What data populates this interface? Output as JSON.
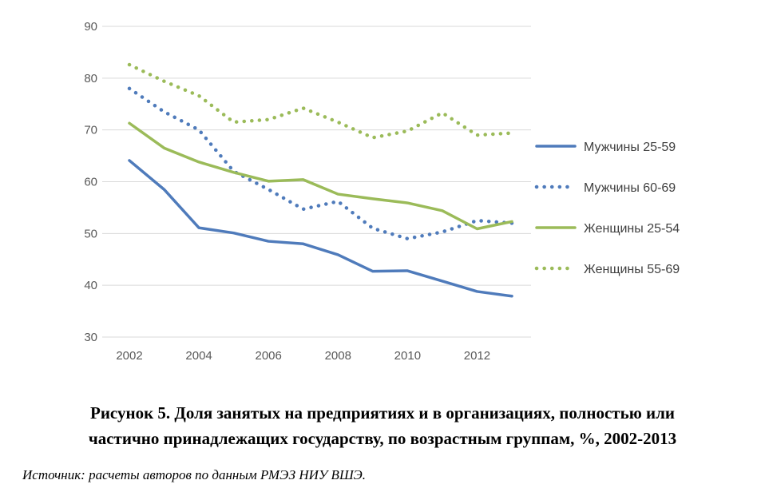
{
  "chart_data": {
    "type": "line",
    "title": "Рисунок 5. Доля занятых на предприятиях и в организациях, полностью или частично принадлежащих государству, по возрастным группам, %, 2002-2013",
    "title_lines": [
      "Рисунок 5. Доля занятых на предприятиях и в организациях, полностью или",
      "частично принадлежащих государству, по возрастным группам, %, 2002-2013"
    ],
    "source": "Источник: расчеты авторов по данным РМЭЗ НИУ ВШЭ.",
    "xlabel": "",
    "ylabel": "",
    "x": [
      2002,
      2003,
      2004,
      2005,
      2006,
      2007,
      2008,
      2009,
      2010,
      2011,
      2012,
      2013
    ],
    "xticks": [
      "2002",
      "2004",
      "2006",
      "2008",
      "2010",
      "2012"
    ],
    "yticks": [
      "30",
      "40",
      "50",
      "60",
      "70",
      "80",
      "90"
    ],
    "ylim": [
      30,
      90
    ],
    "grid": true,
    "legend": "right",
    "series": [
      {
        "name": "Мужчины 25-59",
        "color": "#4f7bbb",
        "style": "solid",
        "values": [
          64.1,
          58.5,
          51.1,
          50.1,
          48.5,
          48.0,
          45.9,
          42.7,
          42.8,
          40.8,
          38.8,
          37.9
        ]
      },
      {
        "name": "Мужчины 60-69",
        "color": "#4f7bbb",
        "style": "dotted",
        "values": [
          78.0,
          73.5,
          70.0,
          62.0,
          58.5,
          54.7,
          56.2,
          51.0,
          49.0,
          50.3,
          52.5,
          52.0
        ]
      },
      {
        "name": "Женщины 25-54",
        "color": "#9bbb59",
        "style": "solid",
        "values": [
          71.3,
          66.5,
          63.8,
          61.8,
          60.1,
          60.4,
          57.6,
          56.7,
          55.9,
          54.4,
          50.9,
          52.3
        ]
      },
      {
        "name": "Женщины 55-69",
        "color": "#9bbb59",
        "style": "dotted",
        "values": [
          82.6,
          79.4,
          76.6,
          71.5,
          72.0,
          74.2,
          71.5,
          68.5,
          69.8,
          73.3,
          69.0,
          69.4
        ]
      }
    ]
  }
}
